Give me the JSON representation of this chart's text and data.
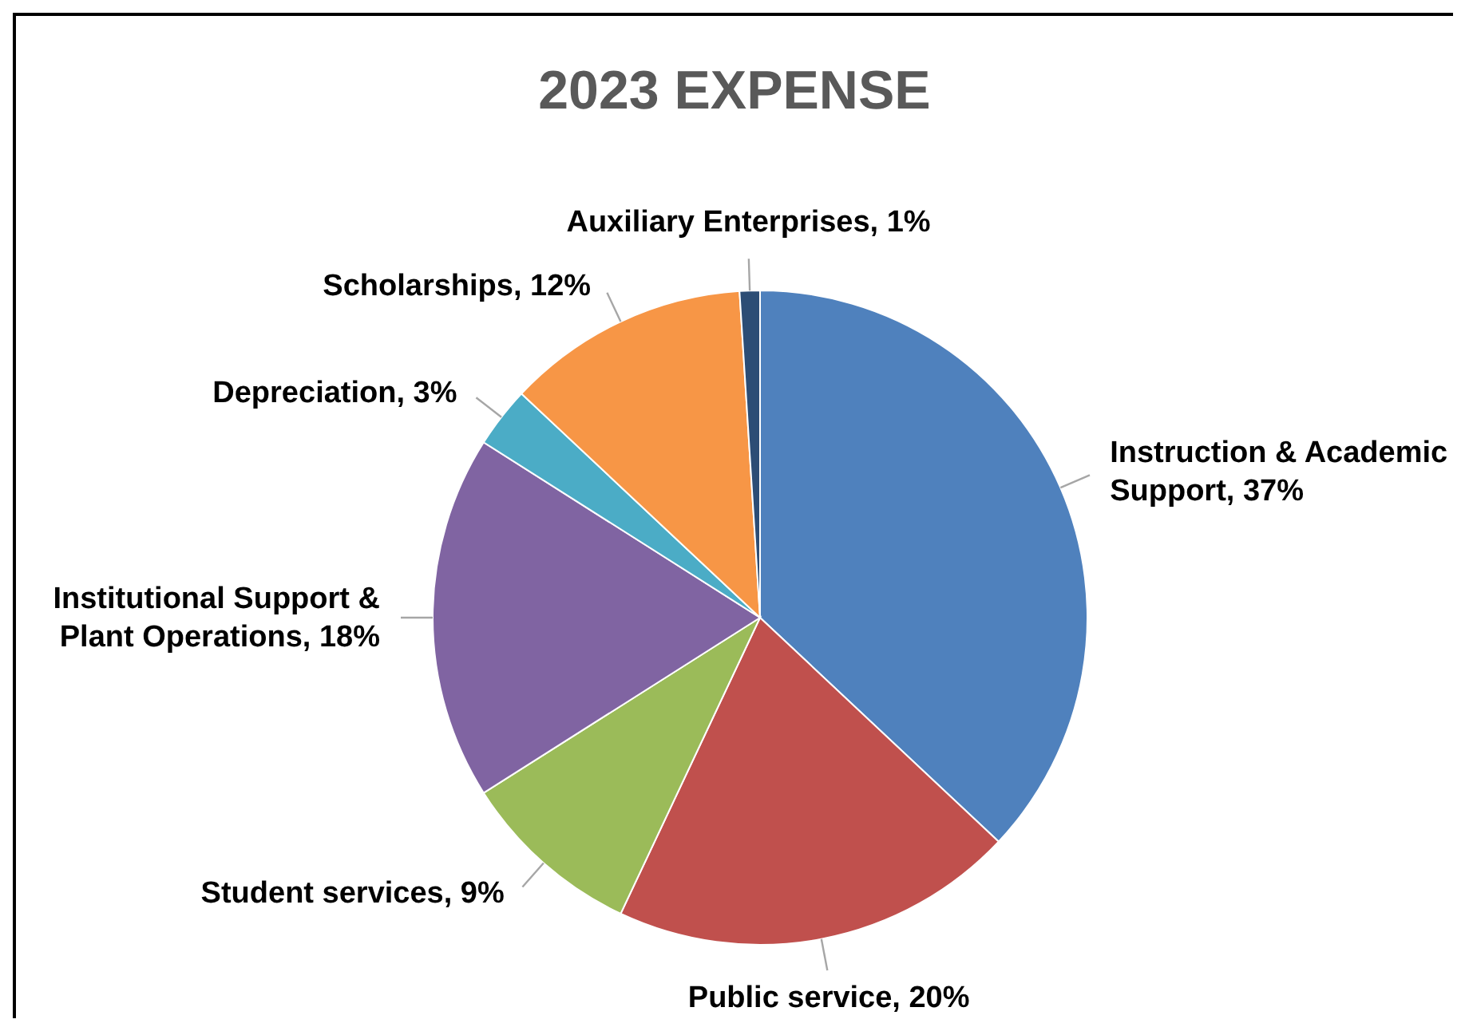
{
  "chart_data": {
    "type": "pie",
    "title": "2023 EXPENSE",
    "categories": [
      "Instruction & Academic Support",
      "Public service",
      "Student services",
      "Institutional Support & Plant Operations",
      "Depreciation",
      "Scholarships",
      "Auxiliary Enterprises"
    ],
    "values": [
      37,
      20,
      9,
      18,
      3,
      12,
      1
    ],
    "value_labels": [
      "37%",
      "20%",
      "9%",
      "18%",
      "3%",
      "12%",
      "1%"
    ],
    "colors": [
      "#4f81bd",
      "#c0504d",
      "#9bbb59",
      "#8064a2",
      "#4bacc6",
      "#f79646",
      "#2c4d75"
    ],
    "legend": false
  }
}
